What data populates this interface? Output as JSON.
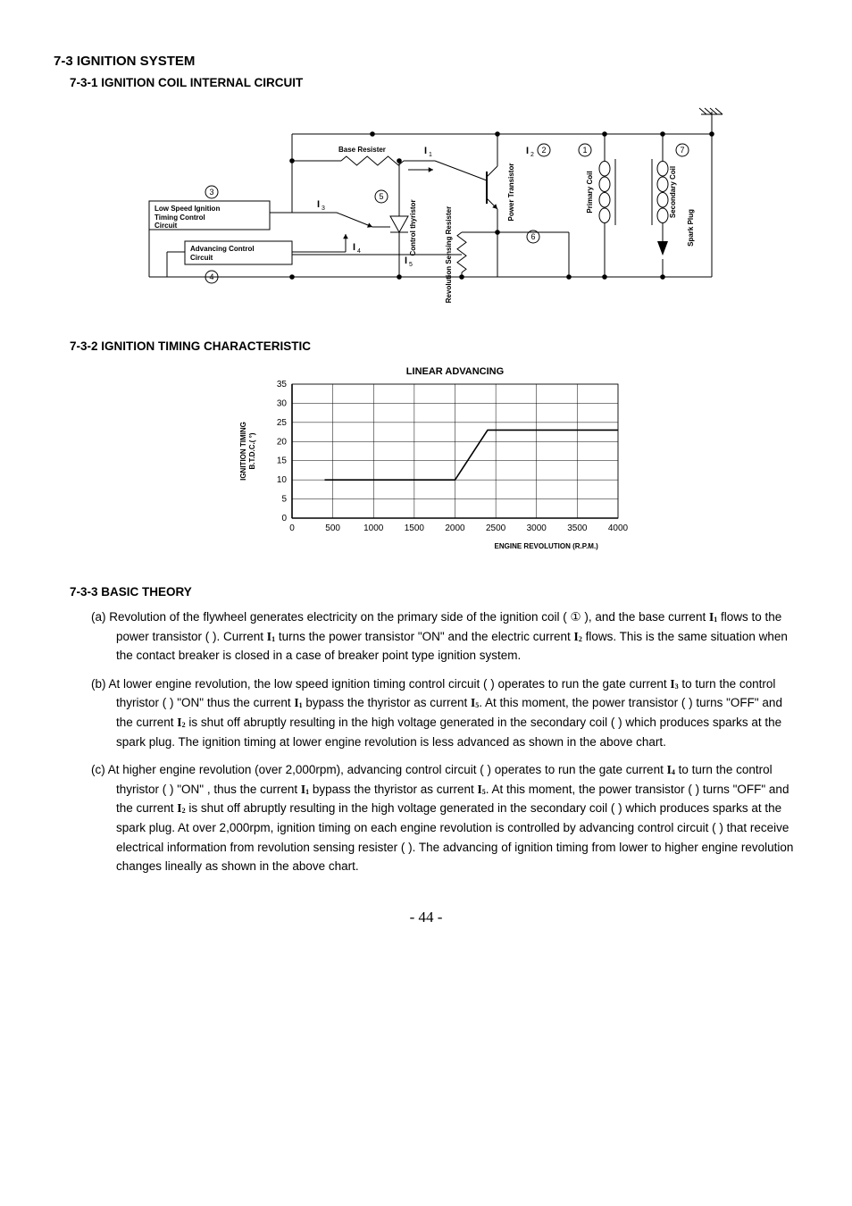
{
  "headings": {
    "h1": "7-3 IGNITION SYSTEM",
    "h2a": "7-3-1 IGNITION COIL INTERNAL CIRCUIT",
    "h2b": "7-3-2 IGNITION TIMING CHARACTERISTIC",
    "h2c": "7-3-3 BASIC THEORY"
  },
  "circuit": {
    "labels": {
      "base_resister": "Base Resister",
      "low_speed_block": "Low Speed Ignition Timing Control Circuit",
      "advancing_block": "Advancing Control Circuit",
      "control_thyristor": "Control thyristor",
      "revolution_sensing": "Revolution Sensing Resister",
      "power_transistor": "Power Transistor",
      "primary_coil": "Primary Coil",
      "secondary_coil": "Secondary Coil",
      "spark_plug": "Spark Plug",
      "I1": "I",
      "I1s": "1",
      "I2": "I",
      "I2s": "2",
      "I3": "I",
      "I3s": "3",
      "I4": "I",
      "I4s": "4",
      "I5": "I",
      "I5s": "5"
    },
    "circled": {
      "c1": "1",
      "c2": "2",
      "c3": "3",
      "c4": "4",
      "c5": "5",
      "c6": "6",
      "c7": "7"
    },
    "box_color": "#ffffff",
    "line_color": "#000000",
    "font_small": 8,
    "font_block": 8
  },
  "chart": {
    "type": "line",
    "title": "LINEAR ADVANCING",
    "title_fontsize": 11,
    "title_fontweight": "bold",
    "xlabel": "ENGINE REVOLUTION (R.P.M.)",
    "ylabel": "IGNITION TIMING\nB.T.D.C.( °)",
    "label_fontsize": 8,
    "label_fontweight": "bold",
    "xlim": [
      0,
      4000
    ],
    "ylim": [
      0,
      35
    ],
    "xtick_step": 500,
    "ytick_step": 5,
    "tick_fontsize": 10,
    "grid_color": "#000000",
    "background_color": "#ffffff",
    "border_color": "#000000",
    "line_color": "#000000",
    "line_width": 1.6,
    "points": [
      {
        "x": 400,
        "y": 10
      },
      {
        "x": 2000,
        "y": 10
      },
      {
        "x": 2400,
        "y": 23
      },
      {
        "x": 4000,
        "y": 23
      }
    ]
  },
  "theory": {
    "a": "(a) Revolution of the flywheel generates electricity on the primary side of the ignition coil ( ① ), and the base current I1 flows to the power transistor (     ). Current I1 turns the power transistor \"ON\" and the electric current I2 flows. This is the same situation when the contact breaker is closed in a case of breaker point type ignition system.",
    "b": "(b) At lower engine revolution, the low speed ignition timing control circuit (     ) operates to run the gate current I3 to turn the control thyristor (     ) \"ON\" thus the current I1 bypass the thyristor as current I5. At this moment, the power transistor (     ) turns \"OFF\" and the current I2 is shut off abruptly resulting in the high voltage generated in the secondary coil (     ) which produces sparks at the spark plug. The ignition timing at lower engine revolution is less advanced as shown in the above chart.",
    "c": "(c) At higher engine revolution (over 2,000rpm), advancing control circuit (     ) operates to run the gate current I4 to turn the control thyristor (     ) \"ON\" , thus the current I1 bypass the thyristor as current I5. At this moment, the power transistor (     ) turns \"OFF\" and the current I2 is shut off abruptly resulting in the high voltage generated in the secondary coil (     ) which produces sparks at the spark plug. At over 2,000rpm, ignition timing on each engine revolution is controlled by advancing control circuit (     ) that receive electrical information from revolution sensing resister (     ). The advancing of ignition timing from lower to higher engine revolution changes lineally as shown in the above chart."
  },
  "pagefoot": "- 44 -"
}
